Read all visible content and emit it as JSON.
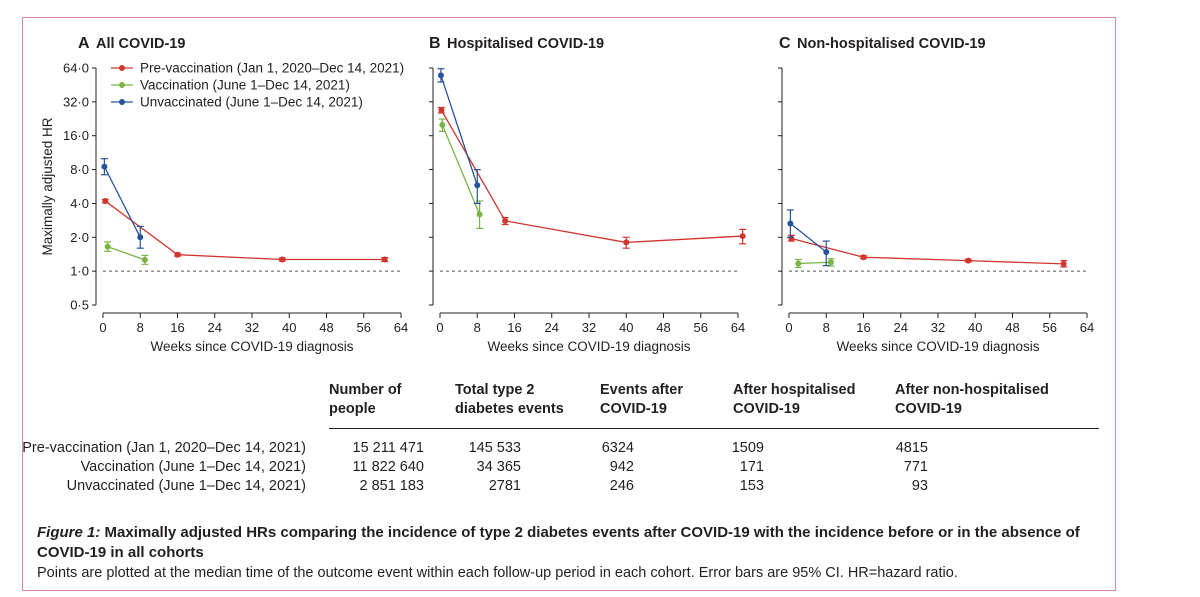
{
  "colors": {
    "pre": "#d0362e",
    "vacc": "#7ab446",
    "unvacc": "#27539a",
    "axis": "#231f20",
    "frame": "#d9899c"
  },
  "chart_data": [
    {
      "type": "line",
      "panel_letter": "A",
      "title": "All COVID-19",
      "xlabel": "Weeks since COVID-19 diagnosis",
      "ylabel": "Maximally adjusted HR",
      "x_ticks": [
        "0",
        "8",
        "16",
        "24",
        "32",
        "40",
        "48",
        "56",
        "64"
      ],
      "y_ticks": [
        "0·5",
        "1·0",
        "2·0",
        "4·0",
        "8·0",
        "16·0",
        "32·0",
        "64·0"
      ],
      "y_scale": "log2",
      "xlim": [
        0,
        64
      ],
      "ylim": [
        0.5,
        64
      ],
      "reference_line": 1.0,
      "legend": [
        "Pre-vaccination (Jan 1, 2020–Dec 14, 2021)",
        "Vaccination (June 1–Dec 14, 2021)",
        "Unvaccinated (June 1–Dec 14, 2021)"
      ],
      "series": [
        {
          "name": "Pre-vaccination",
          "x": [
            0.5,
            16,
            38.5,
            60.5
          ],
          "y": [
            4.2,
            1.4,
            1.27,
            1.27
          ],
          "lo": [
            4.05,
            1.36,
            1.23,
            1.22
          ],
          "hi": [
            4.35,
            1.45,
            1.31,
            1.32
          ]
        },
        {
          "name": "Vaccination",
          "x": [
            1,
            9
          ],
          "y": [
            1.65,
            1.26
          ],
          "lo": [
            1.5,
            1.15
          ],
          "hi": [
            1.82,
            1.38
          ]
        },
        {
          "name": "Unvaccinated",
          "x": [
            0.3,
            8
          ],
          "y": [
            8.5,
            2.0
          ],
          "lo": [
            7.2,
            1.6
          ],
          "hi": [
            10.0,
            2.5
          ]
        }
      ]
    },
    {
      "type": "line",
      "panel_letter": "B",
      "title": "Hospitalised COVID-19",
      "xlabel": "Weeks since COVID-19 diagnosis",
      "x_ticks": [
        "0",
        "8",
        "16",
        "24",
        "32",
        "40",
        "48",
        "56",
        "64"
      ],
      "y_scale": "log2",
      "xlim": [
        0,
        64
      ],
      "ylim": [
        0.5,
        64
      ],
      "reference_line": 1.0,
      "series": [
        {
          "name": "Pre-vaccination",
          "x": [
            0.3,
            14,
            40,
            65
          ],
          "y": [
            27.0,
            2.8,
            1.8,
            2.05
          ],
          "lo": [
            25.5,
            2.6,
            1.6,
            1.75
          ],
          "hi": [
            28.5,
            3.0,
            2.0,
            2.35
          ]
        },
        {
          "name": "Vaccination",
          "x": [
            0.5,
            8.5
          ],
          "y": [
            20.0,
            3.2
          ],
          "lo": [
            17.5,
            2.4
          ],
          "hi": [
            22.5,
            4.2
          ]
        },
        {
          "name": "Unvaccinated",
          "x": [
            0.2,
            8
          ],
          "y": [
            55.0,
            5.8
          ],
          "lo": [
            48.0,
            4.0
          ],
          "hi": [
            63.0,
            8.0
          ]
        }
      ]
    },
    {
      "type": "line",
      "panel_letter": "C",
      "title": "Non-hospitalised COVID-19",
      "xlabel": "Weeks since COVID-19 diagnosis",
      "x_ticks": [
        "0",
        "8",
        "16",
        "24",
        "32",
        "40",
        "48",
        "56",
        "64"
      ],
      "y_scale": "log2",
      "xlim": [
        0,
        64
      ],
      "ylim": [
        0.5,
        64
      ],
      "reference_line": 1.0,
      "series": [
        {
          "name": "Pre-vaccination",
          "x": [
            0.5,
            16,
            38.5,
            59
          ],
          "y": [
            1.95,
            1.33,
            1.24,
            1.16
          ],
          "lo": [
            1.85,
            1.29,
            1.21,
            1.09
          ],
          "hi": [
            2.08,
            1.37,
            1.27,
            1.24
          ]
        },
        {
          "name": "Vaccination",
          "x": [
            2,
            9
          ],
          "y": [
            1.17,
            1.2
          ],
          "lo": [
            1.08,
            1.11
          ],
          "hi": [
            1.27,
            1.29
          ]
        },
        {
          "name": "Unvaccinated",
          "x": [
            0.3,
            8
          ],
          "y": [
            2.65,
            1.48
          ],
          "lo": [
            2.0,
            1.12
          ],
          "hi": [
            3.5,
            1.85
          ]
        }
      ]
    }
  ],
  "table": {
    "headers": [
      "Number of people",
      "Total type 2 diabetes events",
      "Events after COVID-19",
      "After hospitalised COVID-19",
      "After non-hospitalised COVID-19"
    ],
    "rows": [
      {
        "label": "Pre-vaccination (Jan 1, 2020–Dec 14, 2021)",
        "values": [
          "15 211 471",
          "145 533",
          "6324",
          "1509",
          "4815"
        ]
      },
      {
        "label": "Vaccination (June 1–Dec 14, 2021)",
        "values": [
          "11 822 640",
          "34 365",
          "942",
          "171",
          "771"
        ]
      },
      {
        "label": "Unvaccinated (June 1–Dec 14, 2021)",
        "values": [
          "2 851 183",
          "2781",
          "246",
          "153",
          "93"
        ]
      }
    ]
  },
  "caption": {
    "figure_label": "Figure 1:",
    "title": " Maximally adjusted HRs comparing the incidence of type 2 diabetes events after COVID-19 with the incidence before or in the absence of COVID-19 in all cohorts",
    "note": "Points are plotted at the median time of the outcome event within each follow-up period in each cohort. Error bars are 95% CI. HR=hazard ratio."
  }
}
